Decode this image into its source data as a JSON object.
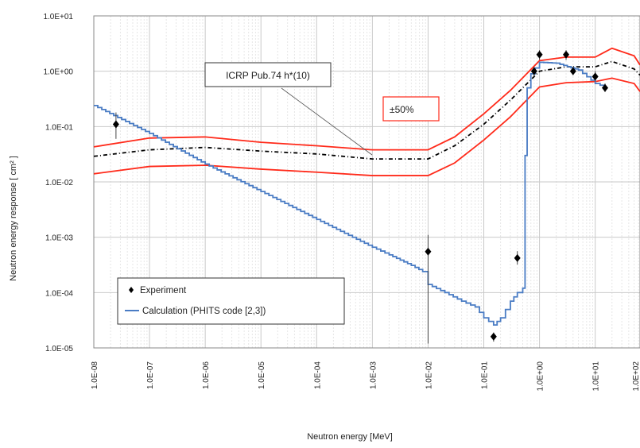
{
  "chart_data": {
    "type": "line",
    "xlabel": "Neutron energy [MeV]",
    "ylabel": "Neutron energy response [ cm² ]",
    "x_scale": "log",
    "y_scale": "log",
    "xlim": [
      1e-08,
      100
    ],
    "ylim": [
      1e-05,
      10
    ],
    "grid": true,
    "y_ticks": [
      {
        "value": 10,
        "label": "1.0E+01"
      },
      {
        "value": 1,
        "label": "1.0E+00"
      },
      {
        "value": 0.1,
        "label": "1.0E-01"
      },
      {
        "value": 0.01,
        "label": "1.0E-02"
      },
      {
        "value": 0.001,
        "label": "1.0E-03"
      },
      {
        "value": 0.0001,
        "label": "1.0E-04"
      },
      {
        "value": 1e-05,
        "label": "1.0E-05"
      }
    ],
    "x_ticks": [
      {
        "value": 1e-08,
        "label": "1.0E-08"
      },
      {
        "value": 1e-07,
        "label": "1.0E-07"
      },
      {
        "value": 1e-06,
        "label": "1.0E-06"
      },
      {
        "value": 1e-05,
        "label": "1.0E-05"
      },
      {
        "value": 0.0001,
        "label": "1.0E-04"
      },
      {
        "value": 0.001,
        "label": "1.0E-03"
      },
      {
        "value": 0.01,
        "label": "1.0E-02"
      },
      {
        "value": 0.1,
        "label": "1.0E-01"
      },
      {
        "value": 1,
        "label": "1.0E+00"
      },
      {
        "value": 10,
        "label": "1.0E+01"
      },
      {
        "value": 100,
        "label": "1.0E+02"
      }
    ],
    "annotations": [
      {
        "text": "ICRP Pub.74 h*(10)",
        "x": 2.5e-05,
        "y": 0.95
      },
      {
        "text": "±50%",
        "x": 0.03,
        "y": 0.12
      }
    ],
    "legend": {
      "placement": "bottom-left",
      "entries": [
        {
          "label": "Experiment",
          "marker": "diamond"
        },
        {
          "label": "Calculation (PHITS code [2,3])",
          "marker": "line"
        }
      ]
    },
    "series": [
      {
        "name": "ICRP Pub.74 h*(10)",
        "style": "dash-dot",
        "color": "#000000",
        "x": [
          1e-08,
          1e-07,
          1e-06,
          1e-05,
          0.0001,
          0.001,
          0.01,
          0.03,
          0.1,
          0.3,
          1,
          3,
          10,
          20,
          50,
          100
        ],
        "y": [
          0.029,
          0.038,
          0.042,
          0.036,
          0.032,
          0.026,
          0.026,
          0.045,
          0.11,
          0.3,
          1.0,
          1.2,
          1.2,
          1.5,
          1.1,
          0.85
        ]
      },
      {
        "name": "+50%",
        "style": "solid",
        "color": "#ff2a1a",
        "x": [
          1e-08,
          1e-07,
          1e-06,
          1e-05,
          0.0001,
          0.001,
          0.01,
          0.03,
          0.1,
          0.3,
          1,
          3,
          10,
          20,
          50,
          100
        ],
        "y": [
          0.043,
          0.062,
          0.065,
          0.052,
          0.045,
          0.038,
          0.038,
          0.065,
          0.17,
          0.45,
          1.55,
          1.8,
          1.8,
          2.6,
          1.9,
          1.3
        ]
      },
      {
        "name": "-50%",
        "style": "solid",
        "color": "#ff2a1a",
        "x": [
          1e-08,
          1e-07,
          1e-06,
          1e-05,
          0.0001,
          0.001,
          0.01,
          0.03,
          0.1,
          0.3,
          1,
          3,
          10,
          20,
          50,
          100
        ],
        "y": [
          0.014,
          0.019,
          0.02,
          0.017,
          0.015,
          0.013,
          0.013,
          0.022,
          0.057,
          0.15,
          0.52,
          0.62,
          0.65,
          0.75,
          0.6,
          0.43
        ]
      },
      {
        "name": "Calculation (PHITS code [2,3])",
        "style": "step",
        "color": "#4a7cc4",
        "x": [
          1e-08,
          1e-07,
          1e-06,
          1e-05,
          0.0001,
          0.001,
          0.002,
          0.005,
          0.008,
          0.01,
          0.02,
          0.04,
          0.07,
          0.1,
          0.15,
          0.2,
          0.3,
          0.4,
          0.45,
          0.5,
          0.55,
          0.6,
          0.7,
          1,
          2,
          5,
          10,
          15
        ],
        "y": [
          0.24,
          0.075,
          0.021,
          0.0067,
          0.0021,
          0.00066,
          0.00048,
          0.00031,
          0.00024,
          0.00014,
          0.0001,
          7e-05,
          5.5e-05,
          3.5e-05,
          2.6e-05,
          3.5e-05,
          7e-05,
          0.0001,
          0.0001,
          0.00012,
          0.03,
          0.5,
          0.9,
          1.45,
          1.4,
          1.05,
          0.6,
          0.52
        ]
      },
      {
        "name": "Experiment",
        "style": "marker",
        "color": "#000000",
        "x": [
          2.5e-08,
          0.01,
          0.15,
          0.4,
          0.8,
          1,
          3,
          4,
          10,
          15
        ],
        "y": [
          0.11,
          0.00055,
          1.6e-05,
          0.00042,
          1.0,
          2.0,
          2.0,
          1.0,
          0.8,
          0.5
        ],
        "err_low": [
          0.06,
          1.2e-05,
          1.3e-05,
          0.00032,
          0.8,
          1.6,
          1.6,
          0.85,
          0.65,
          0.42
        ],
        "err_high": [
          0.18,
          0.0011,
          1.9e-05,
          0.00056,
          1.2,
          2.4,
          2.4,
          1.2,
          1.0,
          0.6
        ]
      }
    ]
  }
}
